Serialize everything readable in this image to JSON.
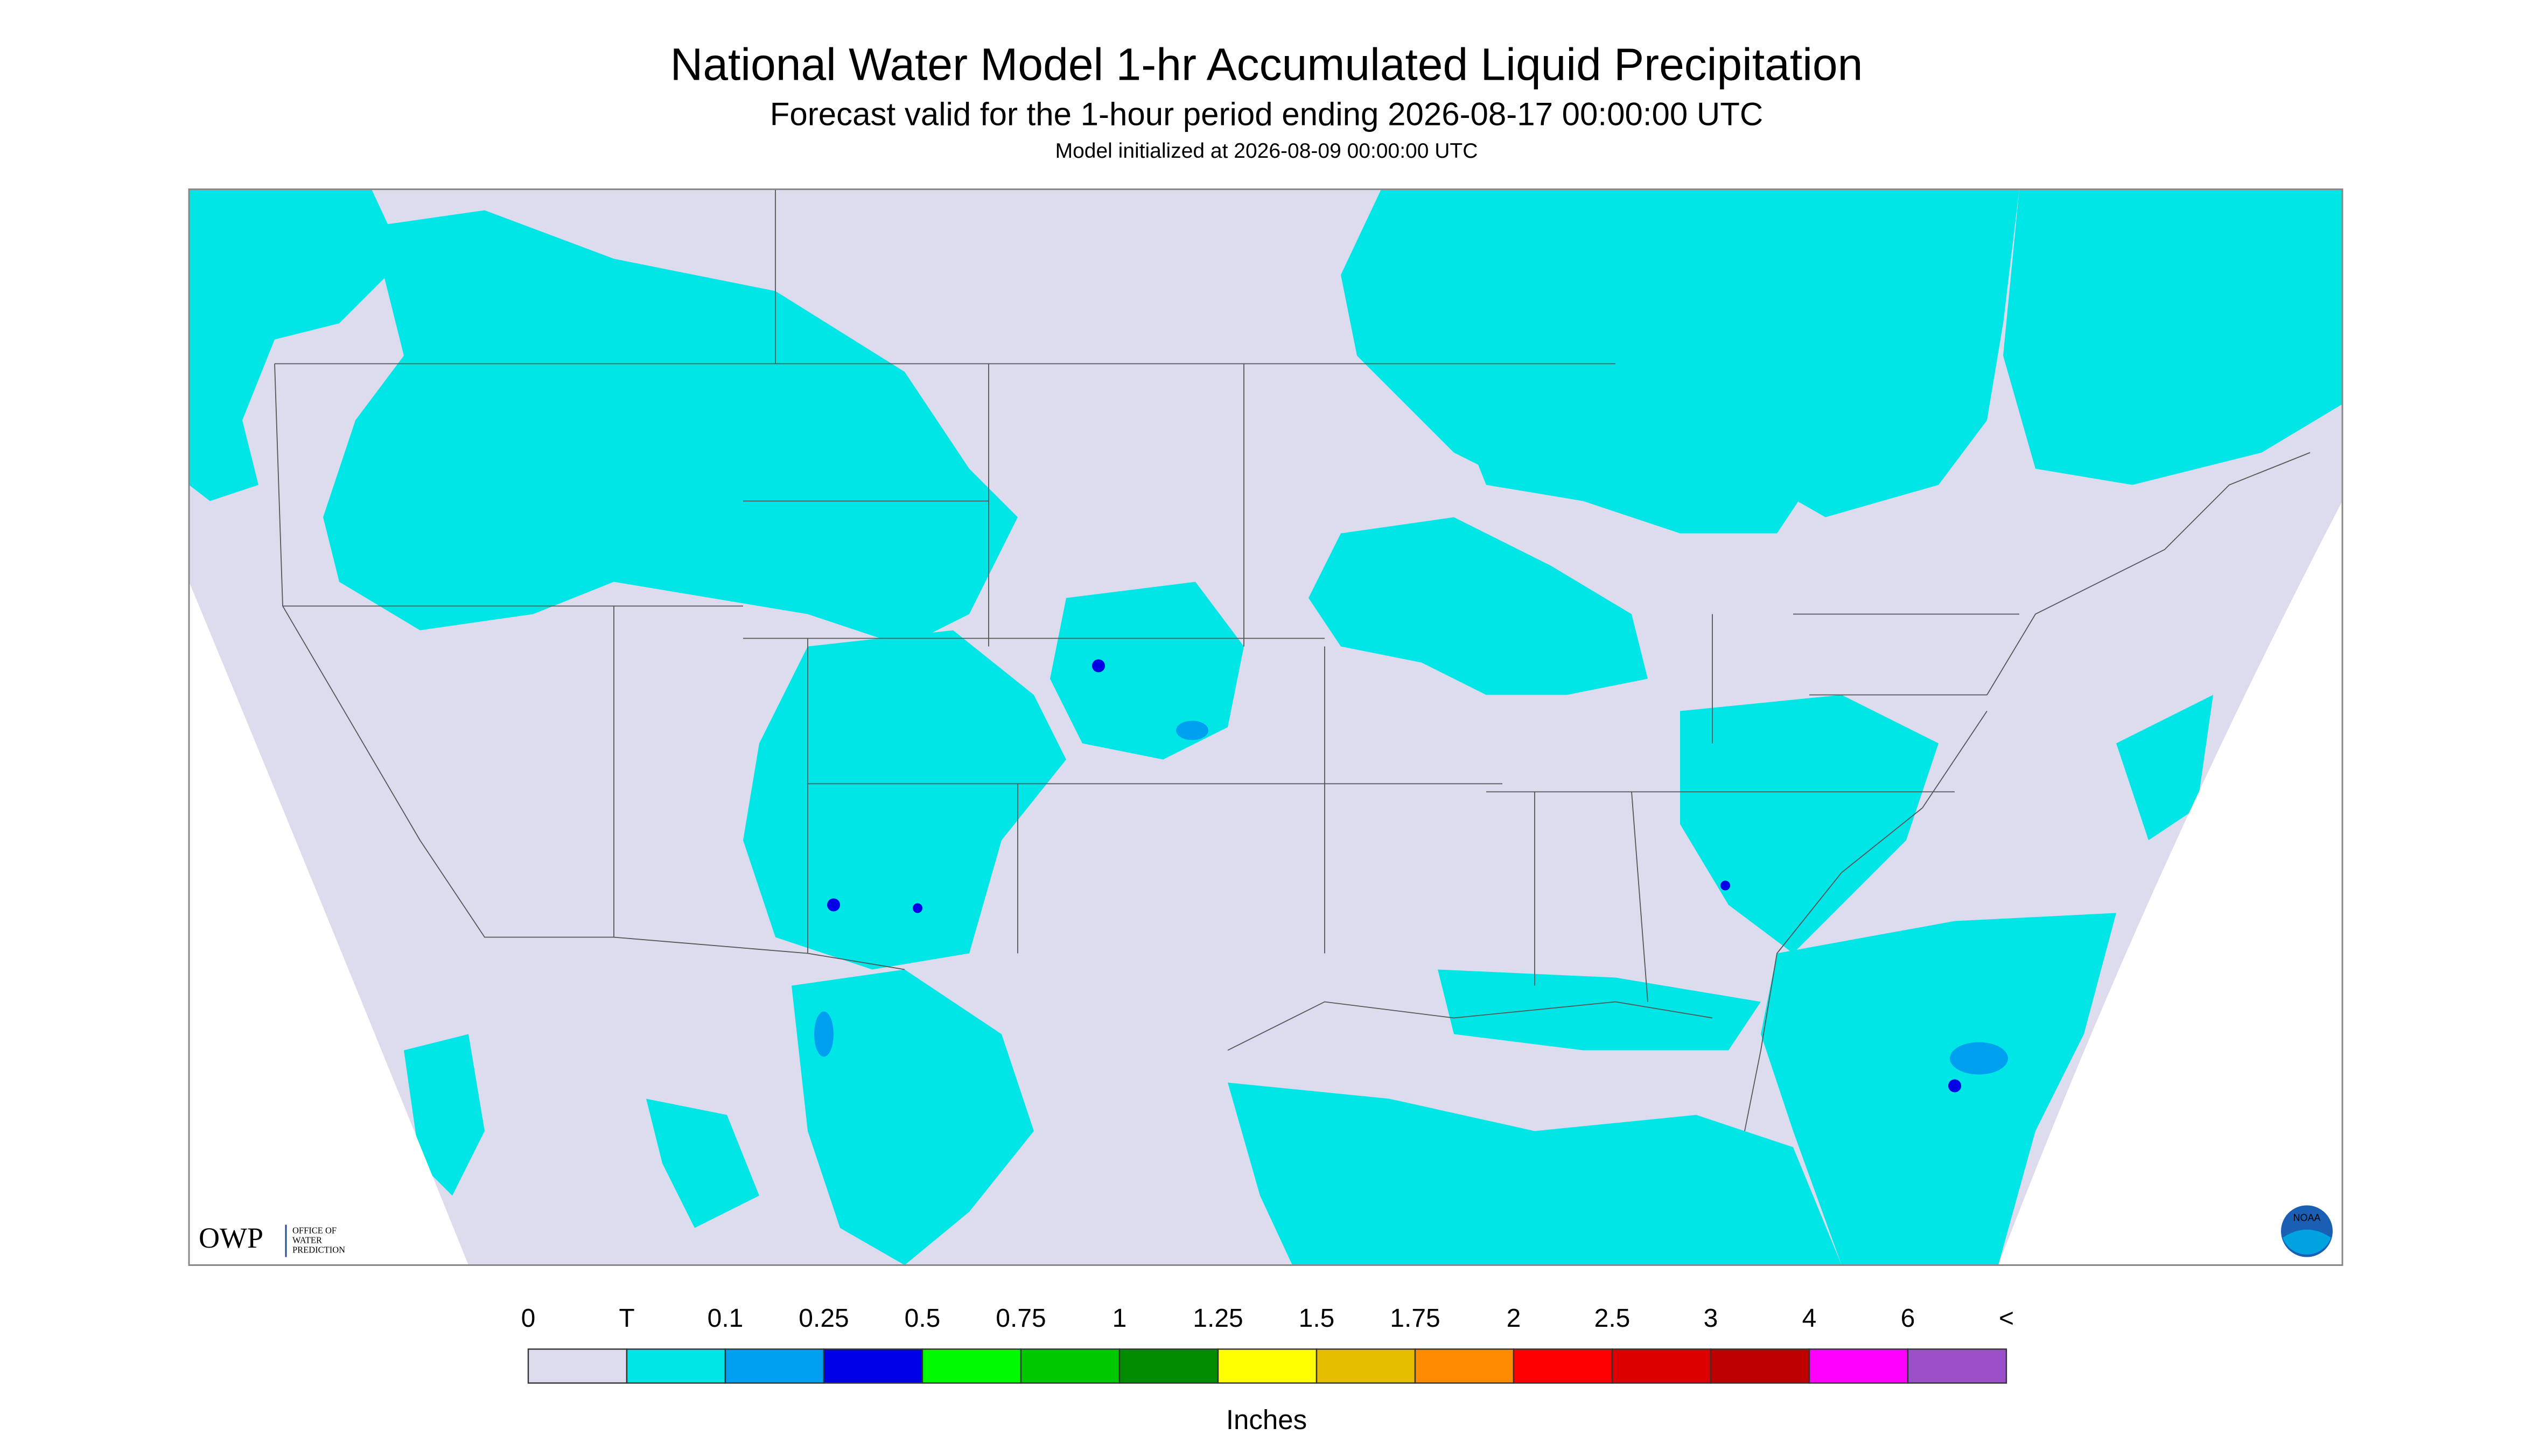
{
  "header": {
    "title": "National Water Model 1-hr Accumulated Liquid Precipitation",
    "subtitle": "Forecast valid for the 1-hour period ending 2026-08-17 00:00:00 UTC",
    "note": "Model initialized at 2026-08-09 00:00:00 UTC"
  },
  "logos": {
    "owp": "OWP",
    "owp_text": [
      "OFFICE OF",
      "WATER",
      "PREDICTION"
    ],
    "noaa": "NOAA"
  },
  "legend": {
    "labels": [
      "0",
      "T",
      "0.1",
      "0.25",
      "0.5",
      "0.75",
      "1",
      "1.25",
      "1.5",
      "1.75",
      "2",
      "2.5",
      "3",
      "4",
      "6",
      "<"
    ],
    "colors": [
      "#dcdcee",
      "#00e6e6",
      "#00a0f0",
      "#0000e6",
      "#00fa00",
      "#00c800",
      "#008c00",
      "#ffff00",
      "#e6be00",
      "#ff8c00",
      "#ff0000",
      "#dc0000",
      "#be0000",
      "#ff00ff",
      "#9a50c8"
    ],
    "unit": "Inches"
  }
}
